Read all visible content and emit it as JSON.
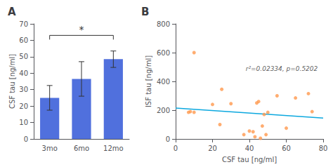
{
  "chart_data": [
    {
      "type": "bar",
      "title": "A",
      "categories": [
        "3mo",
        "6mo",
        "12mo"
      ],
      "values": [
        25.0,
        36.5,
        48.5
      ],
      "errors": [
        7.5,
        10.5,
        5.0
      ],
      "ylabel": "CSF tau [ng/ml]",
      "ylim": [
        0,
        70
      ],
      "yticks": [
        0,
        10,
        20,
        30,
        40,
        50,
        60,
        70
      ],
      "grid": false,
      "annotations": [
        {
          "text": "*",
          "x1": "3mo",
          "x2": "12mo",
          "y": 63
        }
      ]
    },
    {
      "type": "scatter",
      "title": "B",
      "series": [
        {
          "type": "scatter",
          "x": [
            7,
            8,
            10,
            10,
            20,
            24,
            25,
            30,
            37,
            40,
            42,
            43,
            44,
            45,
            46,
            47,
            48,
            49,
            50,
            55,
            60,
            65,
            72,
            74
          ],
          "values": [
            185,
            190,
            185,
            600,
            240,
            100,
            345,
            245,
            30,
            55,
            50,
            15,
            250,
            260,
            5,
            90,
            170,
            30,
            185,
            300,
            75,
            285,
            315,
            190
          ]
        },
        {
          "type": "line",
          "x": [
            0,
            80
          ],
          "values": [
            215,
            145
          ]
        }
      ],
      "xlabel": "CSF tau [ng/ml]",
      "ylabel": "ISF tau [ng/ml]",
      "xlim": [
        0,
        80
      ],
      "xticks": [
        0,
        20,
        40,
        60,
        80
      ],
      "ylim": [
        0,
        800
      ],
      "yticks": [
        0,
        200,
        400,
        600,
        800
      ],
      "grid": false,
      "annotations": [
        {
          "text": "r²=0.02334, p=0.5202",
          "x": 38,
          "y": 490
        }
      ]
    }
  ]
}
